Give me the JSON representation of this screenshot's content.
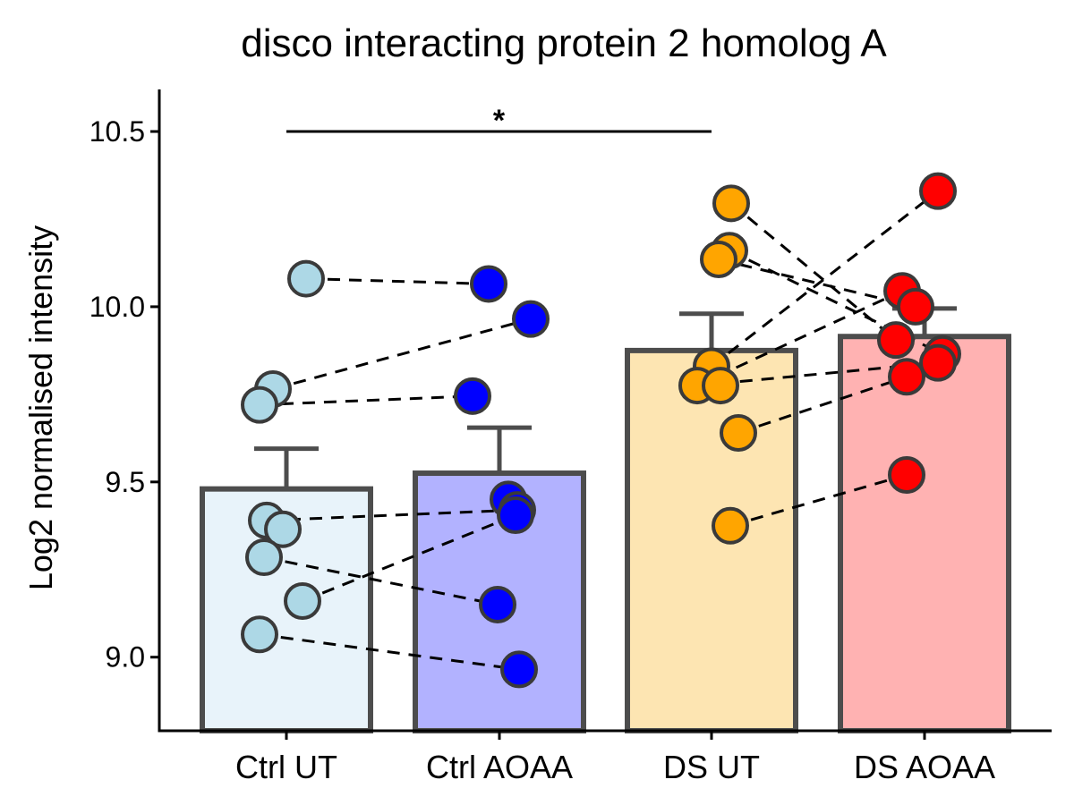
{
  "chart_data": {
    "type": "bar",
    "title": "disco interacting protein 2 homolog A",
    "xlabel": "",
    "ylabel": "Log2 normalised intensity",
    "ylim": [
      8.79,
      10.62
    ],
    "yticks": [
      9.0,
      9.5,
      10.0,
      10.5
    ],
    "ytick_labels": [
      "9.0",
      "9.5",
      "10.0",
      "10.5"
    ],
    "grid": false,
    "legend": "none",
    "categories": [
      "Ctrl UT",
      "Ctrl AOAA",
      "DS UT",
      "DS AOAA"
    ],
    "values": [
      9.48,
      9.525,
      9.875,
      9.915
    ],
    "error_upper": [
      9.595,
      9.655,
      9.98,
      9.995
    ],
    "bar_fill_colors": [
      "#e8f3fa",
      "#b2b2ff",
      "#fde5b2",
      "#ffb2b2"
    ],
    "bar_edge_color": "#4d4d4d",
    "point_colors": [
      "#add8e6",
      "#0000ff",
      "#ffa500",
      "#ff0000"
    ],
    "points": [
      [
        10.08,
        9.765,
        9.72,
        9.39,
        9.365,
        9.285,
        9.16,
        9.065
      ],
      [
        10.065,
        9.965,
        9.745,
        9.45,
        9.42,
        9.405,
        9.15,
        8.965
      ],
      [
        10.295,
        10.16,
        10.135,
        9.83,
        9.775,
        9.775,
        9.64,
        9.375
      ],
      [
        10.33,
        10.045,
        10.0,
        9.905,
        9.865,
        9.84,
        9.8,
        9.52
      ]
    ],
    "pairs": [
      [
        [
          0,
          10.08
        ],
        [
          1,
          10.065
        ]
      ],
      [
        [
          0,
          9.765
        ],
        [
          1,
          9.965
        ]
      ],
      [
        [
          0,
          9.72
        ],
        [
          1,
          9.745
        ]
      ],
      [
        [
          0,
          9.39
        ],
        [
          1,
          9.42
        ]
      ],
      [
        [
          0,
          9.285
        ],
        [
          1,
          9.15
        ]
      ],
      [
        [
          0,
          9.16
        ],
        [
          1,
          9.405
        ]
      ],
      [
        [
          0,
          9.065
        ],
        [
          1,
          8.965
        ]
      ],
      [
        [
          2,
          10.295
        ],
        [
          3,
          9.905
        ]
      ],
      [
        [
          2,
          10.16
        ],
        [
          3,
          9.865
        ]
      ],
      [
        [
          2,
          10.135
        ],
        [
          3,
          10.0
        ]
      ],
      [
        [
          2,
          9.83
        ],
        [
          3,
          10.33
        ]
      ],
      [
        [
          2,
          9.775
        ],
        [
          3,
          9.84
        ]
      ],
      [
        [
          2,
          9.775
        ],
        [
          3,
          10.045
        ]
      ],
      [
        [
          2,
          9.64
        ],
        [
          3,
          9.8
        ]
      ],
      [
        [
          2,
          9.375
        ],
        [
          3,
          9.52
        ]
      ]
    ],
    "significance": {
      "from": "Ctrl UT",
      "to": "DS UT",
      "y": 10.5,
      "label": "*"
    }
  }
}
